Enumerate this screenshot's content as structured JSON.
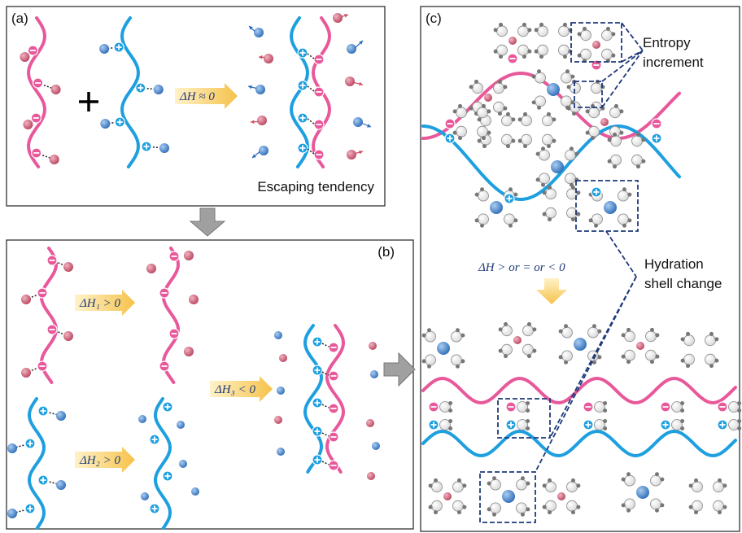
{
  "panels": {
    "a": {
      "label": "(a)",
      "arrow_label": "ΔH ≈ 0",
      "caption": "Escaping tendency"
    },
    "b": {
      "label": "(b)",
      "arrow_labels": [
        "ΔH₁ > 0",
        "ΔH₂ > 0",
        "ΔH₃ < 0"
      ]
    },
    "c": {
      "label": "(c)",
      "arrow_label": "ΔH > or = or < 0",
      "annotations": [
        {
          "lines": [
            "Entropy",
            "increment"
          ]
        },
        {
          "lines": [
            "Hydration",
            "shell change"
          ]
        }
      ]
    }
  }
}
